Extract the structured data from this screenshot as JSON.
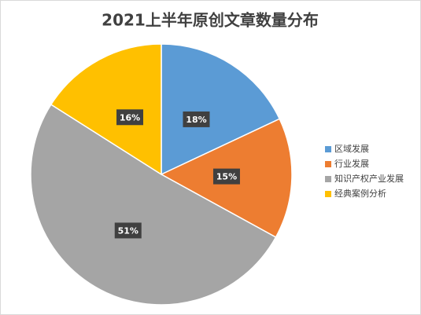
{
  "chart_data": {
    "type": "pie",
    "title": "2021上半年原创文章数量分布",
    "categories": [
      "区域发展",
      "行业发展",
      "知识产权产业发展",
      "经典案例分析"
    ],
    "values": [
      18,
      15,
      51,
      16
    ],
    "value_labels": [
      "18%",
      "15%",
      "51%",
      "16%"
    ],
    "colors": [
      "#5b9bd5",
      "#ed7d31",
      "#a5a5a5",
      "#ffc000"
    ],
    "legend": "right"
  }
}
